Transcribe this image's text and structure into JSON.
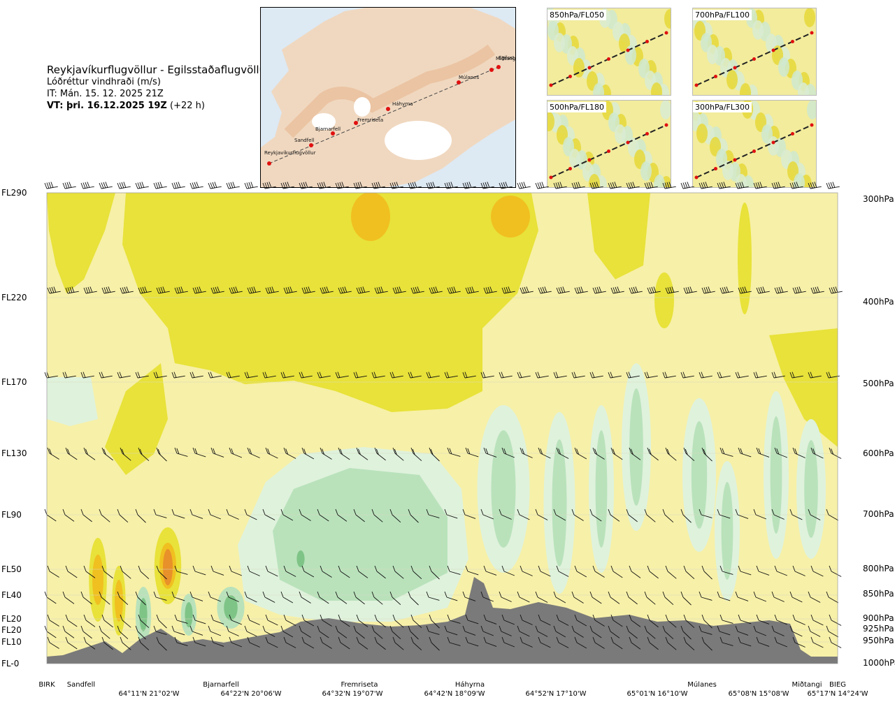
{
  "header": {
    "route": "Reykjavíkurflugvöllur - Egilsstaðaflugvöllur",
    "quantity": "Lóðréttur vindhraði (m/s)",
    "issue_time": "IT: Mán. 15. 12. 2025 21Z",
    "valid_time_bold": "VT: þri. 16.12.2025 19Z",
    "valid_offset": "(+22 h)"
  },
  "map": {
    "places": [
      "Reykjavíkurflugvöllur",
      "Sandfell",
      "Bjarnarfell",
      "Fremriseta",
      "Háhyrna",
      "Múlanes",
      "Miðtangi",
      "Egilsst"
    ]
  },
  "thumbnails": [
    {
      "label": "850hPa/FL050"
    },
    {
      "label": "700hPa/FL100"
    },
    {
      "label": "500hPa/FL180"
    },
    {
      "label": "300hPa/FL300"
    }
  ],
  "flight_levels": [
    "FL290",
    "FL220",
    "FL170",
    "FL130",
    "FL90",
    "FL50",
    "FL40",
    "FL20",
    "FL20",
    "FL10",
    "FL-0"
  ],
  "pressure_levels": [
    "300hPa",
    "400hPa",
    "500hPa",
    "600hPa",
    "700hPa",
    "800hPa",
    "850hPa",
    "900hPa",
    "925hPa",
    "950hPa",
    "1000hPa"
  ],
  "locations": [
    "BIRK",
    "Sandfell",
    "Bjarnarfell",
    "Fremriseta",
    "Háhyrna",
    "Múlanes",
    "Miðtangi",
    "BIEG"
  ],
  "coordinates": [
    "64°11'N 21°02'W",
    "64°22'N 20°06'W",
    "64°32'N 19°07'W",
    "64°42'N 18°09'W",
    "64°52'N 17°10'W",
    "65°01'N 16°10'W",
    "65°08'N 15°08'W",
    "65°17'N 14°24'W"
  ],
  "colors": {
    "background_field": "#f7f0a8",
    "upward_weak": "#e8e23a",
    "upward_moderate": "#f0c020",
    "upward_strong": "#e8902a",
    "downward_weak": "#dff2dc",
    "downward_moderate": "#b9e2bb",
    "downward_strong": "#7fc487",
    "near_zero": "#fbfbe8",
    "terrain": "#7a7a7a"
  },
  "chart_data": {
    "type": "heatmap",
    "title": "Lóðréttur vindhraði (m/s)",
    "xlabel": "",
    "ylabel": "",
    "x_categories": [
      "BIRK",
      "Sandfell",
      "Bjarnarfell",
      "Fremriseta",
      "Háhyrna",
      "Múlanes",
      "Miðtangi",
      "BIEG"
    ],
    "y_levels_hPa": [
      1000,
      950,
      925,
      900,
      850,
      800,
      700,
      600,
      500,
      400,
      300
    ],
    "y_flight_levels": [
      "FL-0",
      "FL10",
      "FL20",
      "FL20",
      "FL40",
      "FL50",
      "FL90",
      "FL130",
      "FL170",
      "FL220",
      "FL290"
    ],
    "ylim_hPa": [
      1000,
      300
    ],
    "y_scale": "pressure",
    "grid": false,
    "legend": "none"
  }
}
